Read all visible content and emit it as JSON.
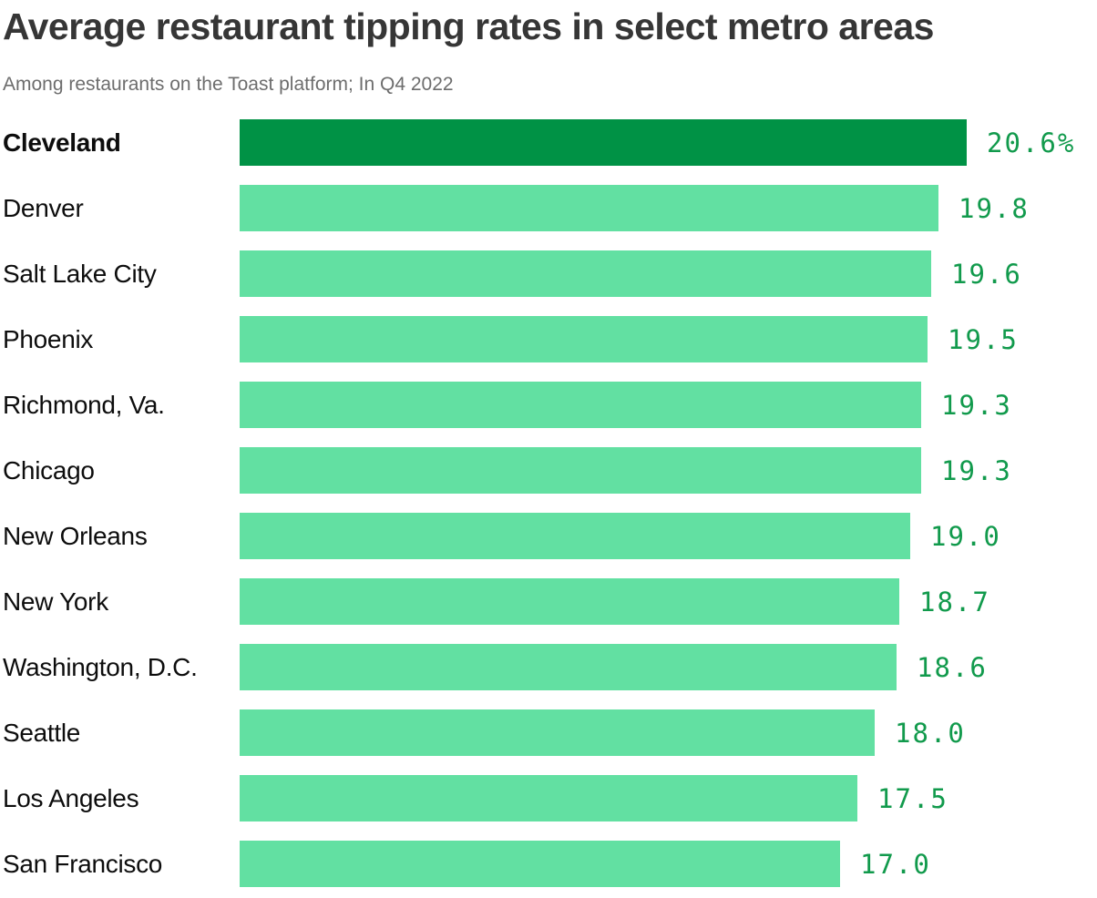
{
  "title": "Average restaurant tipping rates in select metro areas",
  "subtitle": "Among restaurants on the Toast platform; In Q4 2022",
  "colors": {
    "bar_highlight": "#009245",
    "bar_default": "#62e0a2",
    "value_text": "#119a4c",
    "title_text": "#363636",
    "subtitle_text": "#6d6d6d",
    "category_text": "#0d0d0d"
  },
  "chart_data": {
    "type": "bar",
    "orientation": "horizontal",
    "title": "Average restaurant tipping rates in select metro areas",
    "subtitle": "Among restaurants on the Toast platform; In Q4 2022",
    "unit": "%",
    "xlim": [
      0,
      20.6
    ],
    "grid": false,
    "legend": false,
    "highlighted_category": "Cleveland",
    "categories": [
      "Cleveland",
      "Denver",
      "Salt Lake City",
      "Phoenix",
      "Richmond, Va.",
      "Chicago",
      "New Orleans",
      "New York",
      "Washington, D.C.",
      "Seattle",
      "Los Angeles",
      "San Francisco"
    ],
    "values": [
      20.6,
      19.8,
      19.6,
      19.5,
      19.3,
      19.3,
      19.0,
      18.7,
      18.6,
      18.0,
      17.5,
      17.0
    ],
    "value_labels": [
      "20.6%",
      "19.8",
      "19.6",
      "19.5",
      "19.3",
      "19.3",
      "19.0",
      "18.7",
      "18.6",
      "18.0",
      "17.5",
      "17.0"
    ]
  }
}
